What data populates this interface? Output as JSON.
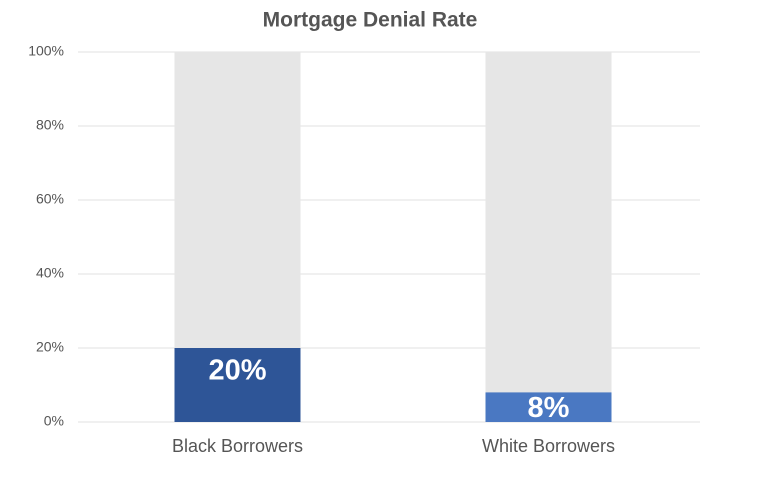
{
  "chart_data": {
    "type": "bar",
    "title": "Mortgage Denial Rate",
    "categories": [
      "Black Borrowers",
      "White Borrowers"
    ],
    "values": [
      20,
      8
    ],
    "value_labels": [
      "20%",
      "8%"
    ],
    "colors": [
      "#2e5597",
      "#4a78c2"
    ],
    "ylim": [
      0,
      100
    ],
    "yticks": [
      {
        "value": 0,
        "label": "0%"
      },
      {
        "value": 20,
        "label": "20%"
      },
      {
        "value": 40,
        "label": "40%"
      },
      {
        "value": 60,
        "label": "60%"
      },
      {
        "value": 80,
        "label": "80%"
      },
      {
        "value": 100,
        "label": "100%"
      }
    ],
    "grid": true
  }
}
